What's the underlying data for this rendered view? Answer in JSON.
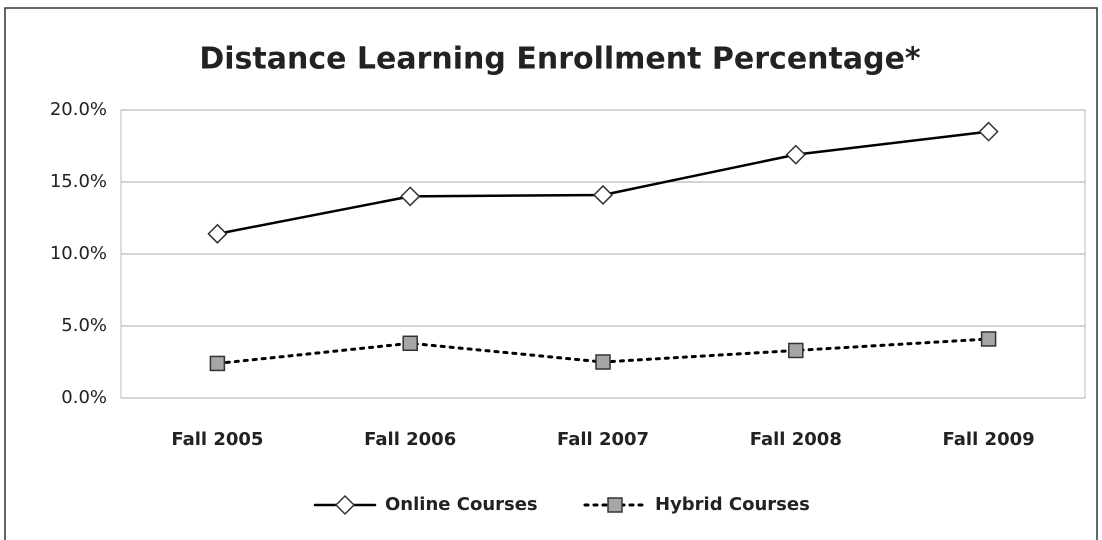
{
  "chart_data": {
    "type": "line",
    "title": "Distance Learning Enrollment  Percentage*",
    "categories": [
      "Fall 2005",
      "Fall 2006",
      "Fall 2007",
      "Fall 2008",
      "Fall 2009"
    ],
    "series": [
      {
        "name": "Online Courses",
        "color": "#000000",
        "marker": "diamond",
        "marker_fill": "#ffffff",
        "line_style": "solid",
        "values": [
          11.4,
          14.0,
          14.1,
          16.9,
          18.5
        ]
      },
      {
        "name": "Hybrid Courses",
        "color": "#000000",
        "marker": "square",
        "marker_fill": "#a6a6a6",
        "line_style": "dotted",
        "values": [
          2.4,
          3.8,
          2.5,
          3.3,
          4.1
        ]
      }
    ],
    "ylim": [
      0,
      20
    ],
    "yticks": [
      {
        "value": 0,
        "label": "0.0%"
      },
      {
        "value": 5,
        "label": "5.0%"
      },
      {
        "value": 10,
        "label": "10.0%"
      },
      {
        "value": 15,
        "label": "15.0%"
      },
      {
        "value": 20,
        "label": "20.0%"
      }
    ],
    "grid": true,
    "legend": "bottom"
  }
}
